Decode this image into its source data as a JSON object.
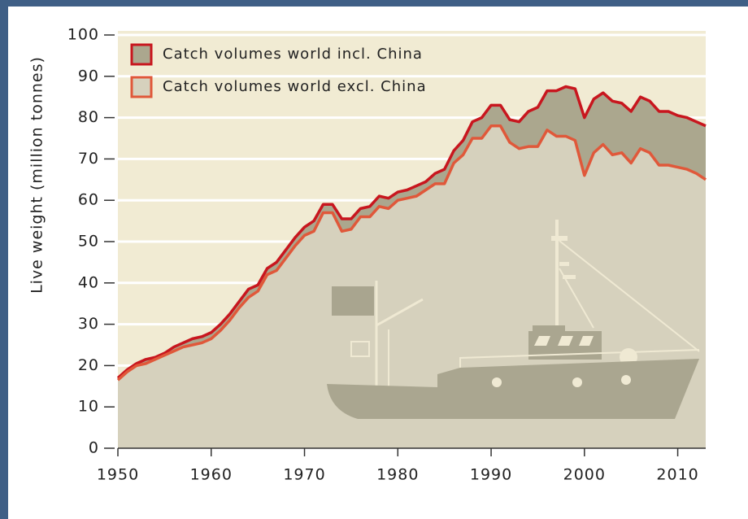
{
  "chart_data": {
    "type": "area",
    "y_label": "Live weight (million tonnes)",
    "x": [
      1950,
      1951,
      1952,
      1953,
      1954,
      1955,
      1956,
      1957,
      1958,
      1959,
      1960,
      1961,
      1962,
      1963,
      1964,
      1965,
      1966,
      1967,
      1968,
      1969,
      1970,
      1971,
      1972,
      1973,
      1974,
      1975,
      1976,
      1977,
      1978,
      1979,
      1980,
      1981,
      1982,
      1983,
      1984,
      1985,
      1986,
      1987,
      1988,
      1989,
      1990,
      1991,
      1992,
      1993,
      1994,
      1995,
      1996,
      1997,
      1998,
      1999,
      2000,
      2001,
      2002,
      2003,
      2004,
      2005,
      2006,
      2007,
      2008,
      2009,
      2010,
      2011,
      2012,
      2013
    ],
    "series": [
      {
        "name": "Catch volumes world incl. China",
        "color": "#c8161e",
        "fill": "#aba78e",
        "values": [
          17,
          19,
          20.5,
          21.5,
          22,
          23,
          24.5,
          25.5,
          26.5,
          27,
          28,
          30,
          32.5,
          35.5,
          38.5,
          39.5,
          43.5,
          45,
          48,
          51,
          53.5,
          55,
          59,
          59,
          55.5,
          55.5,
          58,
          58.5,
          61,
          60.5,
          62,
          62.5,
          63.5,
          64.5,
          66.5,
          67.5,
          72,
          74.5,
          79,
          80,
          83,
          83,
          79.5,
          79,
          81.5,
          82.5,
          86.5,
          86.5,
          87.5,
          87,
          80,
          84.5,
          86,
          84,
          83.5,
          81.5,
          85,
          84,
          81.5,
          81.5,
          80.5,
          80,
          79,
          78
        ]
      },
      {
        "name": "Catch volumes world excl. China",
        "color": "#e0583a",
        "fill": "#d6d1bd",
        "values": [
          16.5,
          18.5,
          20,
          20.5,
          21.5,
          22.5,
          23.5,
          24.5,
          25,
          25.5,
          26.5,
          28.5,
          31,
          34,
          36.5,
          38,
          42,
          43,
          46,
          49,
          51.5,
          52.5,
          57,
          57,
          52.5,
          53,
          56,
          56,
          58.5,
          58,
          60,
          60.5,
          61,
          62.5,
          64,
          64,
          69,
          71,
          75,
          75,
          78,
          78,
          74,
          72.5,
          73,
          73,
          77,
          75.5,
          75.5,
          74.5,
          66,
          71.5,
          73.5,
          71,
          71.5,
          69,
          72.5,
          71.5,
          68.5,
          68.5,
          68,
          67.5,
          66.5,
          65
        ]
      }
    ],
    "xlim": [
      1950,
      2013
    ],
    "ylim": [
      0,
      100
    ],
    "xticks": [
      1950,
      1960,
      1970,
      1980,
      1990,
      2000,
      2010
    ],
    "yticks": [
      0,
      10,
      20,
      30,
      40,
      50,
      60,
      70,
      80,
      90,
      100
    ],
    "grid": true,
    "legend": "top-left",
    "background": "#f1ebd3"
  }
}
